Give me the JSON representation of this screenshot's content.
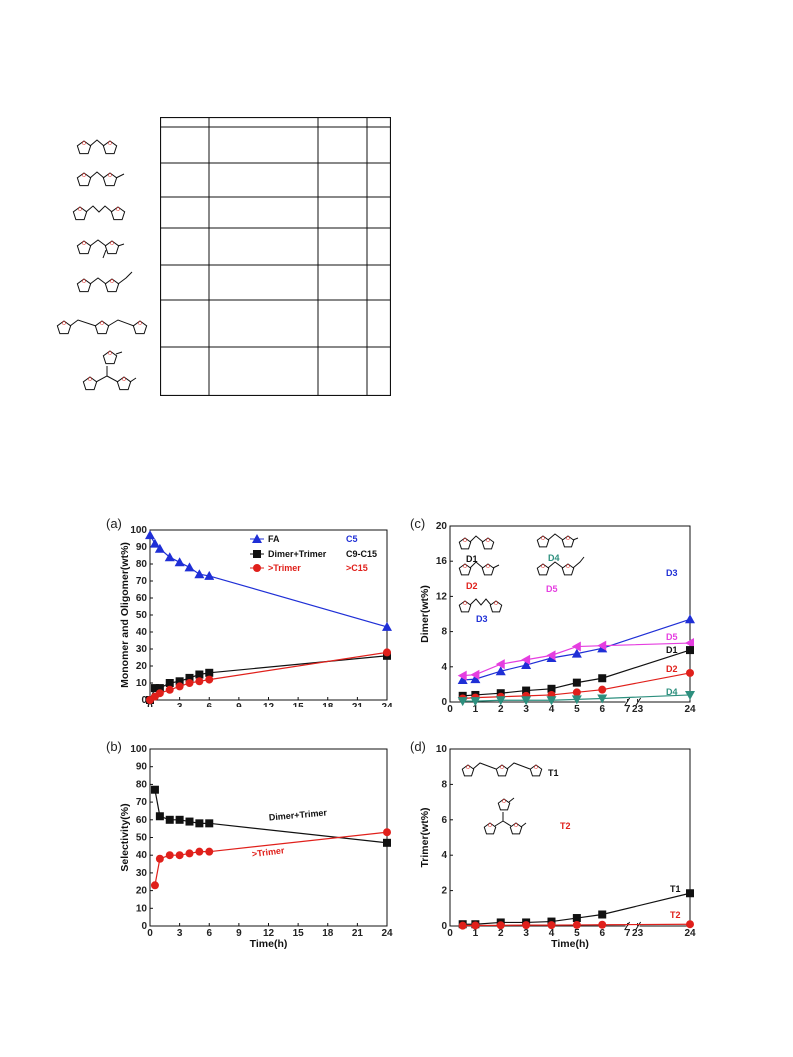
{
  "structure_table": {
    "row_count": 7,
    "columns": [
      "",
      "",
      "",
      ""
    ]
  },
  "colors": {
    "blue": "#1f2fd6",
    "black": "#111111",
    "red": "#e0201b",
    "magenta": "#e53ee0",
    "teal": "#2d8f7e"
  },
  "chart_data": [
    {
      "id": "a",
      "panel_label": "(a)",
      "type": "line",
      "xlabel": "Time(h)",
      "ylabel": "Monomer and Oligomer(wt%)",
      "xlim": [
        0,
        24
      ],
      "ylim": [
        0,
        100
      ],
      "xticks": [
        0,
        3,
        6,
        9,
        12,
        15,
        18,
        21,
        24
      ],
      "yticks": [
        0,
        10,
        20,
        30,
        40,
        50,
        60,
        70,
        80,
        90,
        100
      ],
      "legend": "top-right",
      "series": [
        {
          "name": "FA",
          "tag": "C5",
          "color": "#1f2fd6",
          "marker": "triangle",
          "x": [
            0,
            0.5,
            1,
            2,
            3,
            4,
            5,
            6,
            24
          ],
          "y": [
            97,
            92,
            89,
            84,
            81,
            78,
            74,
            73,
            43
          ]
        },
        {
          "name": "Dimer+Trimer",
          "tag": "C9-C15",
          "color": "#111111",
          "marker": "square",
          "x": [
            0,
            0.5,
            1,
            2,
            3,
            4,
            5,
            6,
            24
          ],
          "y": [
            0,
            7,
            7,
            10,
            11,
            13,
            15,
            16,
            26
          ]
        },
        {
          "name": ">Trimer",
          "tag": ">C15",
          "color": "#e0201b",
          "marker": "circle",
          "x": [
            0,
            0.5,
            1,
            2,
            3,
            4,
            5,
            6,
            24
          ],
          "y": [
            0,
            2,
            4,
            6,
            8,
            10,
            11,
            12,
            28
          ]
        }
      ]
    },
    {
      "id": "b",
      "panel_label": "(b)",
      "type": "line",
      "xlabel": "Time(h)",
      "ylabel": "Selectivity(%)",
      "xlim": [
        0,
        24
      ],
      "ylim": [
        0,
        100
      ],
      "xticks": [
        0,
        3,
        6,
        9,
        12,
        15,
        18,
        21,
        24
      ],
      "yticks": [
        0,
        10,
        20,
        30,
        40,
        50,
        60,
        70,
        80,
        90,
        100
      ],
      "series": [
        {
          "name": "Dimer+Trimer",
          "color": "#111111",
          "marker": "square",
          "x": [
            0.5,
            1,
            2,
            3,
            4,
            5,
            6,
            24
          ],
          "y": [
            77,
            62,
            60,
            60,
            59,
            58,
            58,
            47
          ]
        },
        {
          "name": ">Trimer",
          "color": "#e0201b",
          "marker": "circle",
          "x": [
            0.5,
            1,
            2,
            3,
            4,
            5,
            6,
            24
          ],
          "y": [
            23,
            38,
            40,
            40,
            41,
            42,
            42,
            53
          ]
        }
      ]
    },
    {
      "id": "c",
      "panel_label": "(c)",
      "type": "line",
      "xlabel": "Time(h)",
      "ylabel": "Dimer(wt%)",
      "xticks": [
        "0",
        "1",
        "2",
        "3",
        "4",
        "5",
        "6",
        "7",
        "23",
        "24"
      ],
      "ylim": [
        0,
        20
      ],
      "yticks": [
        0,
        4,
        8,
        12,
        16,
        20
      ],
      "series": [
        {
          "name": "D3",
          "color": "#1f2fd6",
          "marker": "triangle",
          "x": [
            0.5,
            1,
            2,
            3,
            4,
            5,
            6,
            24
          ],
          "y": [
            2.5,
            2.6,
            3.5,
            4.2,
            5.0,
            5.5,
            6.1,
            9.4
          ]
        },
        {
          "name": "D5",
          "color": "#e53ee0",
          "marker": "triangle-left",
          "x": [
            0.5,
            1,
            2,
            3,
            4,
            5,
            6,
            24
          ],
          "y": [
            3.0,
            3.1,
            4.3,
            4.8,
            5.3,
            6.3,
            6.4,
            6.7
          ]
        },
        {
          "name": "D1",
          "color": "#111111",
          "marker": "square",
          "x": [
            0.5,
            1,
            2,
            3,
            4,
            5,
            6,
            24
          ],
          "y": [
            0.7,
            0.8,
            1.0,
            1.3,
            1.5,
            2.2,
            2.7,
            5.9
          ]
        },
        {
          "name": "D2",
          "color": "#e0201b",
          "marker": "circle",
          "x": [
            0.5,
            1,
            2,
            3,
            4,
            5,
            6,
            24
          ],
          "y": [
            0.4,
            0.5,
            0.6,
            0.7,
            0.8,
            1.1,
            1.4,
            3.3
          ]
        },
        {
          "name": "D4",
          "color": "#2d8f7e",
          "marker": "triangle-down",
          "x": [
            0.5,
            1,
            2,
            3,
            4,
            5,
            6,
            24
          ],
          "y": [
            0.1,
            0.1,
            0.2,
            0.2,
            0.2,
            0.3,
            0.4,
            0.8
          ]
        }
      ],
      "structure_labels": [
        "D1",
        "D2",
        "D3",
        "D4",
        "D5"
      ]
    },
    {
      "id": "d",
      "panel_label": "(d)",
      "type": "line",
      "xlabel": "Time(h)",
      "ylabel": "Trimer(wt%)",
      "xticks": [
        "0",
        "1",
        "2",
        "3",
        "4",
        "5",
        "6",
        "7",
        "23",
        "24"
      ],
      "ylim": [
        0,
        10
      ],
      "yticks": [
        0,
        2,
        4,
        6,
        8,
        10
      ],
      "series": [
        {
          "name": "T1",
          "color": "#111111",
          "marker": "square",
          "x": [
            0.5,
            1,
            2,
            3,
            4,
            5,
            6,
            24
          ],
          "y": [
            0.1,
            0.1,
            0.2,
            0.2,
            0.25,
            0.45,
            0.65,
            1.85
          ]
        },
        {
          "name": "T2",
          "color": "#e0201b",
          "marker": "circle",
          "x": [
            0.5,
            1,
            2,
            3,
            4,
            5,
            6,
            24
          ],
          "y": [
            0.02,
            0.03,
            0.04,
            0.05,
            0.05,
            0.06,
            0.07,
            0.1
          ]
        }
      ],
      "structure_labels": [
        "T1",
        "T2"
      ]
    }
  ]
}
